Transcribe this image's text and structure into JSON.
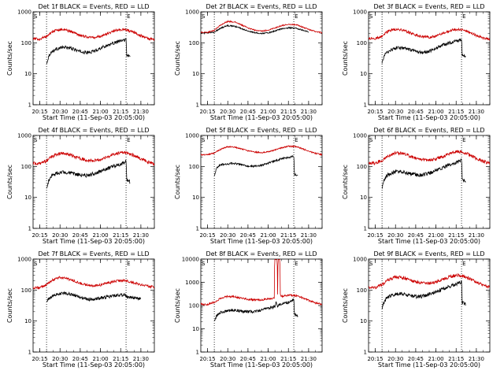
{
  "figure": {
    "units": "counts/sec",
    "x_tick_labels": [
      "20:15",
      "20:30",
      "20:45",
      "21:00",
      "21:15",
      "21:30"
    ],
    "x_label": "Start Time (11-Sep-03 20:05:00)",
    "y_label": "Counts/sec",
    "marker_start": "S",
    "marker_end": "E"
  },
  "chart_data": [
    {
      "type": "line",
      "title": "Det 1f BLACK = Events, RED = LLD",
      "ylabel": "Counts/sec",
      "xlabel": "Start Time (11-Sep-03 20:05:00)",
      "log_y": true,
      "ylim": [
        1,
        1000
      ],
      "y_ticks": [
        "1",
        "10",
        "100",
        "1000"
      ],
      "xlim_min": [
        5,
        95
      ],
      "x_ticks_min": [
        10,
        25,
        40,
        55,
        70,
        85
      ],
      "vlines_min": [
        15,
        74
      ],
      "series": [
        {
          "name": "Events",
          "color": "#000000",
          "noise": 0.05,
          "x": [
            15,
            17,
            19,
            22,
            25,
            28,
            32,
            36,
            40,
            44,
            48,
            52,
            56,
            60,
            64,
            68,
            72,
            74,
            74.5,
            77
          ],
          "y": [
            20,
            40,
            52,
            62,
            68,
            72,
            68,
            60,
            52,
            48,
            50,
            58,
            70,
            82,
            95,
            108,
            120,
            128,
            40,
            35
          ]
        },
        {
          "name": "LLD",
          "color": "#cc0000",
          "noise": 0.04,
          "x": [
            5,
            10,
            15,
            20,
            25,
            30,
            35,
            40,
            45,
            50,
            55,
            60,
            65,
            70,
            75,
            80,
            85,
            90,
            95
          ],
          "y": [
            135,
            132,
            160,
            235,
            270,
            255,
            215,
            175,
            155,
            148,
            160,
            195,
            240,
            270,
            255,
            215,
            170,
            140,
            125
          ]
        }
      ]
    },
    {
      "type": "line",
      "title": "Det 2f BLACK = Events, RED = LLD",
      "ylabel": "Counts/sec",
      "xlabel": "Start Time (11-Sep-03 20:05:00)",
      "log_y": true,
      "ylim": [
        1,
        1000
      ],
      "y_ticks": [
        "1",
        "10",
        "100",
        "1000"
      ],
      "xlim_min": [
        5,
        95
      ],
      "x_ticks_min": [
        10,
        25,
        40,
        55,
        70,
        85
      ],
      "vlines_min": [
        15,
        74
      ],
      "series": [
        {
          "name": "Events",
          "color": "#000000",
          "noise": 0.02,
          "x": [
            5,
            10,
            15,
            20,
            25,
            30,
            35,
            40,
            45,
            50,
            55,
            60,
            65,
            70,
            75,
            80,
            85
          ],
          "y": [
            205,
            208,
            220,
            300,
            360,
            345,
            290,
            240,
            210,
            200,
            210,
            240,
            285,
            305,
            300,
            260,
            225
          ]
        },
        {
          "name": "LLD",
          "color": "#cc0000",
          "noise": 0.02,
          "x": [
            5,
            10,
            15,
            20,
            25,
            30,
            35,
            40,
            45,
            50,
            55,
            60,
            65,
            70,
            75,
            80,
            85,
            90,
            95
          ],
          "y": [
            215,
            218,
            250,
            380,
            490,
            470,
            380,
            300,
            255,
            240,
            255,
            300,
            360,
            395,
            390,
            330,
            270,
            230,
            210
          ]
        }
      ]
    },
    {
      "type": "line",
      "title": "Det 3f BLACK = Events, RED = LLD",
      "ylabel": "Counts/sec",
      "xlabel": "Start Time (11-Sep-03 20:05:00)",
      "log_y": true,
      "ylim": [
        1,
        1000
      ],
      "y_ticks": [
        "1",
        "10",
        "100",
        "1000"
      ],
      "xlim_min": [
        5,
        95
      ],
      "x_ticks_min": [
        10,
        25,
        40,
        55,
        70,
        85
      ],
      "vlines_min": [
        15,
        74
      ],
      "series": [
        {
          "name": "Events",
          "color": "#000000",
          "noise": 0.05,
          "x": [
            15,
            17,
            19,
            22,
            25,
            28,
            32,
            36,
            40,
            44,
            48,
            52,
            56,
            60,
            64,
            68,
            72,
            74,
            74.5,
            77
          ],
          "y": [
            22,
            40,
            50,
            60,
            66,
            70,
            66,
            58,
            52,
            48,
            50,
            58,
            70,
            84,
            96,
            108,
            118,
            125,
            40,
            36
          ]
        },
        {
          "name": "LLD",
          "color": "#cc0000",
          "noise": 0.04,
          "x": [
            5,
            10,
            15,
            20,
            25,
            30,
            35,
            40,
            45,
            50,
            55,
            60,
            65,
            70,
            75,
            80,
            85,
            90,
            95
          ],
          "y": [
            138,
            135,
            165,
            240,
            275,
            258,
            218,
            178,
            158,
            150,
            162,
            198,
            245,
            272,
            258,
            218,
            172,
            142,
            128
          ]
        }
      ]
    },
    {
      "type": "line",
      "title": "Det 4f BLACK = Events, RED = LLD",
      "ylabel": "Counts/sec",
      "xlabel": "Start Time (11-Sep-03 20:05:00)",
      "log_y": true,
      "ylim": [
        1,
        1000
      ],
      "y_ticks": [
        "1",
        "10",
        "100",
        "1000"
      ],
      "xlim_min": [
        5,
        95
      ],
      "x_ticks_min": [
        10,
        25,
        40,
        55,
        70,
        85
      ],
      "vlines_min": [
        15,
        74
      ],
      "series": [
        {
          "name": "Events",
          "color": "#000000",
          "noise": 0.06,
          "x": [
            15,
            17,
            19,
            22,
            25,
            28,
            32,
            36,
            40,
            44,
            48,
            52,
            56,
            60,
            64,
            68,
            72,
            74,
            74.5,
            77
          ],
          "y": [
            18,
            38,
            50,
            58,
            64,
            66,
            62,
            56,
            52,
            50,
            55,
            62,
            72,
            84,
            98,
            112,
            130,
            150,
            38,
            32
          ]
        },
        {
          "name": "LLD",
          "color": "#cc0000",
          "noise": 0.05,
          "x": [
            5,
            10,
            15,
            20,
            25,
            30,
            35,
            40,
            45,
            50,
            55,
            60,
            65,
            70,
            75,
            80,
            85,
            90,
            95
          ],
          "y": [
            125,
            122,
            150,
            220,
            265,
            255,
            215,
            178,
            160,
            155,
            168,
            200,
            245,
            280,
            270,
            225,
            178,
            140,
            120
          ]
        }
      ]
    },
    {
      "type": "line",
      "title": "Det 5f BLACK = Events, RED = LLD",
      "ylabel": "Counts/sec",
      "xlabel": "Start Time (11-Sep-03 20:05:00)",
      "log_y": true,
      "ylim": [
        1,
        1000
      ],
      "y_ticks": [
        "1",
        "10",
        "100",
        "1000"
      ],
      "xlim_min": [
        5,
        95
      ],
      "x_ticks_min": [
        10,
        25,
        40,
        55,
        70,
        85
      ],
      "vlines_min": [
        15,
        74
      ],
      "series": [
        {
          "name": "Events",
          "color": "#000000",
          "noise": 0.03,
          "x": [
            15,
            17,
            19,
            22,
            25,
            28,
            32,
            36,
            40,
            44,
            48,
            52,
            56,
            60,
            64,
            68,
            72,
            74,
            74.5,
            77
          ],
          "y": [
            50,
            90,
            110,
            118,
            122,
            124,
            120,
            110,
            102,
            100,
            104,
            115,
            132,
            150,
            170,
            190,
            205,
            212,
            55,
            50
          ]
        },
        {
          "name": "LLD",
          "color": "#cc0000",
          "noise": 0.02,
          "x": [
            5,
            10,
            15,
            20,
            25,
            30,
            35,
            40,
            45,
            50,
            55,
            60,
            65,
            70,
            75,
            80,
            85,
            90,
            95
          ],
          "y": [
            240,
            238,
            270,
            360,
            430,
            420,
            370,
            320,
            290,
            280,
            295,
            340,
            400,
            450,
            440,
            375,
            310,
            265,
            240
          ]
        }
      ]
    },
    {
      "type": "line",
      "title": "Det 6f BLACK = Events, RED = LLD",
      "ylabel": "Counts/sec",
      "xlabel": "Start Time (11-Sep-03 20:05:00)",
      "log_y": true,
      "ylim": [
        1,
        1000
      ],
      "y_ticks": [
        "1",
        "10",
        "100",
        "1000"
      ],
      "xlim_min": [
        5,
        95
      ],
      "x_ticks_min": [
        10,
        25,
        40,
        55,
        70,
        85
      ],
      "vlines_min": [
        15,
        74
      ],
      "series": [
        {
          "name": "Events",
          "color": "#000000",
          "noise": 0.06,
          "x": [
            15,
            17,
            19,
            22,
            25,
            28,
            32,
            36,
            40,
            44,
            48,
            52,
            56,
            60,
            64,
            68,
            72,
            74,
            74.5,
            77
          ],
          "y": [
            20,
            40,
            52,
            60,
            66,
            68,
            64,
            58,
            54,
            52,
            58,
            66,
            78,
            92,
            108,
            125,
            145,
            170,
            38,
            32
          ]
        },
        {
          "name": "LLD",
          "color": "#cc0000",
          "noise": 0.05,
          "x": [
            5,
            10,
            15,
            20,
            25,
            30,
            35,
            40,
            45,
            50,
            55,
            60,
            65,
            70,
            75,
            80,
            85,
            90,
            95
          ],
          "y": [
            130,
            126,
            155,
            225,
            270,
            260,
            220,
            182,
            165,
            160,
            175,
            210,
            255,
            300,
            290,
            235,
            180,
            145,
            125
          ]
        }
      ]
    },
    {
      "type": "line",
      "title": "Det 7f BLACK = Events, RED = LLD",
      "ylabel": "Counts/sec",
      "xlabel": "Start Time (11-Sep-03 20:05:00)",
      "log_y": true,
      "ylim": [
        1,
        1000
      ],
      "y_ticks": [
        "1",
        "10",
        "100",
        "1000"
      ],
      "xlim_min": [
        5,
        95
      ],
      "x_ticks_min": [
        10,
        25,
        40,
        55,
        70,
        85
      ],
      "vlines_min": [
        15,
        74
      ],
      "series": [
        {
          "name": "Events",
          "color": "#000000",
          "noise": 0.05,
          "x": [
            15,
            17,
            19,
            22,
            25,
            28,
            32,
            36,
            40,
            44,
            48,
            52,
            56,
            60,
            64,
            68,
            72,
            74,
            76,
            80,
            85
          ],
          "y": [
            40,
            55,
            62,
            70,
            76,
            80,
            75,
            66,
            58,
            52,
            50,
            52,
            56,
            60,
            64,
            68,
            70,
            66,
            60,
            55,
            52
          ]
        },
        {
          "name": "LLD",
          "color": "#cc0000",
          "noise": 0.04,
          "x": [
            5,
            10,
            15,
            20,
            25,
            30,
            35,
            40,
            45,
            50,
            55,
            60,
            65,
            70,
            75,
            80,
            85,
            90,
            95
          ],
          "y": [
            120,
            118,
            150,
            215,
            255,
            240,
            200,
            165,
            145,
            138,
            145,
            165,
            190,
            205,
            195,
            170,
            150,
            135,
            122
          ]
        }
      ]
    },
    {
      "type": "line",
      "title": "Det 8f BLACK = Events, RED = LLD",
      "ylabel": "Counts/sec",
      "xlabel": "Start Time (11-Sep-03 20:05:00)",
      "log_y": true,
      "ylim": [
        1,
        10000
      ],
      "y_ticks": [
        "1",
        "10",
        "100",
        "1000",
        "10000"
      ],
      "xlim_min": [
        5,
        95
      ],
      "x_ticks_min": [
        10,
        25,
        40,
        55,
        70,
        85
      ],
      "vlines_min": [
        15,
        74
      ],
      "series": [
        {
          "name": "Events",
          "color": "#000000",
          "noise": 0.06,
          "x": [
            15,
            17,
            19,
            22,
            25,
            28,
            32,
            36,
            40,
            44,
            48,
            52,
            56,
            60,
            61,
            62,
            63,
            64,
            68,
            72,
            74,
            74.5,
            77
          ],
          "y": [
            22,
            38,
            48,
            55,
            60,
            62,
            60,
            56,
            54,
            55,
            60,
            68,
            78,
            88,
            140,
            95,
            110,
            112,
            128,
            150,
            175,
            40,
            36
          ]
        },
        {
          "name": "LLD",
          "color": "#cc0000",
          "noise": 0.04,
          "x": [
            5,
            10,
            15,
            20,
            25,
            30,
            35,
            40,
            45,
            50,
            55,
            59.5,
            60,
            61.5,
            62,
            62.5,
            63.5,
            64,
            64.5,
            66,
            70,
            75,
            80,
            85,
            90,
            95
          ],
          "y": [
            115,
            112,
            140,
            205,
            250,
            240,
            205,
            185,
            175,
            175,
            190,
            210,
            9500,
            9500,
            300,
            9500,
            9500,
            300,
            250,
            255,
            285,
            270,
            215,
            165,
            130,
            110
          ]
        }
      ]
    },
    {
      "type": "line",
      "title": "Det 9f BLACK = Events, RED = LLD",
      "ylabel": "Counts/sec",
      "xlabel": "Start Time (11-Sep-03 20:05:00)",
      "log_y": true,
      "ylim": [
        1,
        1000
      ],
      "y_ticks": [
        "1",
        "10",
        "100",
        "1000"
      ],
      "xlim_min": [
        5,
        95
      ],
      "x_ticks_min": [
        10,
        25,
        40,
        55,
        70,
        85
      ],
      "vlines_min": [
        15,
        74
      ],
      "series": [
        {
          "name": "Events",
          "color": "#000000",
          "noise": 0.06,
          "x": [
            15,
            17,
            19,
            22,
            25,
            28,
            32,
            36,
            40,
            44,
            48,
            52,
            56,
            60,
            64,
            68,
            72,
            74,
            74.5,
            77
          ],
          "y": [
            25,
            45,
            58,
            68,
            74,
            76,
            72,
            66,
            62,
            62,
            68,
            78,
            92,
            108,
            125,
            145,
            165,
            185,
            40,
            36
          ]
        },
        {
          "name": "LLD",
          "color": "#cc0000",
          "noise": 0.05,
          "x": [
            5,
            10,
            15,
            20,
            25,
            30,
            35,
            40,
            45,
            50,
            55,
            60,
            65,
            70,
            75,
            80,
            85,
            90,
            95
          ],
          "y": [
            125,
            120,
            148,
            215,
            262,
            252,
            215,
            182,
            168,
            165,
            182,
            220,
            268,
            300,
            288,
            235,
            180,
            142,
            122
          ]
        }
      ]
    }
  ]
}
